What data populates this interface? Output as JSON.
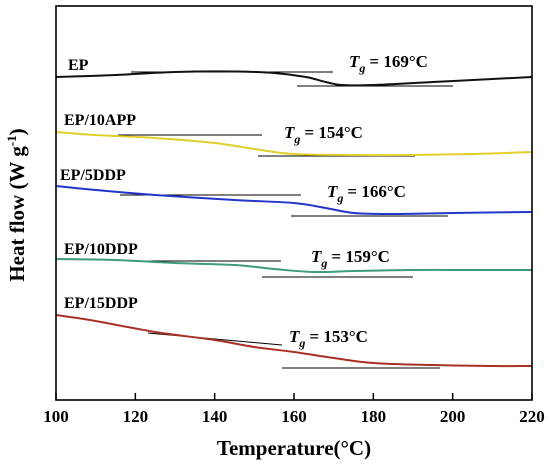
{
  "chart_data": {
    "type": "line",
    "xlabel": "Temperature(°C)",
    "ylabel_main": "Heat flow (W g",
    "ylabel_sup": "-1",
    "ylabel_end": ")",
    "xlim": [
      100,
      220
    ],
    "x_ticks": [
      "100",
      "120",
      "140",
      "160",
      "180",
      "200",
      "220"
    ],
    "y_ticks_shown": false,
    "grid": false,
    "series": [
      {
        "name": "EP",
        "color": "#111111",
        "tg_text": "= 169°C",
        "points": [
          [
            100,
            77
          ],
          [
            115,
            75
          ],
          [
            130,
            72
          ],
          [
            145,
            71.5
          ],
          [
            155,
            73
          ],
          [
            163,
            77
          ],
          [
            168,
            82
          ],
          [
            172,
            85
          ],
          [
            180,
            85
          ],
          [
            195,
            82
          ],
          [
            210,
            79
          ],
          [
            220,
            77
          ]
        ]
      },
      {
        "name": "EP/10APP",
        "color": "#e2cf2c",
        "tg_text": "= 154°C",
        "points": [
          [
            100,
            132
          ],
          [
            110,
            135
          ],
          [
            125,
            138
          ],
          [
            140,
            143
          ],
          [
            150,
            149
          ],
          [
            160,
            154
          ],
          [
            175,
            155
          ],
          [
            190,
            155
          ],
          [
            205,
            154
          ],
          [
            220,
            152
          ]
        ]
      },
      {
        "name": "EP/5DDP",
        "color": "#2236c9",
        "tg_text": "= 166°C",
        "points": [
          [
            100,
            186
          ],
          [
            110,
            190
          ],
          [
            125,
            195
          ],
          [
            145,
            200
          ],
          [
            160,
            203
          ],
          [
            168,
            208
          ],
          [
            175,
            213
          ],
          [
            185,
            214
          ],
          [
            200,
            213
          ],
          [
            220,
            212
          ]
        ]
      },
      {
        "name": "EP/10DDP",
        "color": "#3e9b7c",
        "tg_text": "= 159°C",
        "points": [
          [
            100,
            259
          ],
          [
            115,
            260
          ],
          [
            130,
            263
          ],
          [
            145,
            265
          ],
          [
            155,
            269
          ],
          [
            165,
            272
          ],
          [
            175,
            271
          ],
          [
            190,
            270
          ],
          [
            205,
            270
          ],
          [
            220,
            270
          ]
        ]
      },
      {
        "name": "EP/15DDP",
        "color": "#a83024",
        "tg_text": "= 153°C",
        "points": [
          [
            100,
            315
          ],
          [
            110,
            321
          ],
          [
            125,
            332
          ],
          [
            140,
            340
          ],
          [
            150,
            347
          ],
          [
            160,
            352
          ],
          [
            170,
            358
          ],
          [
            180,
            363
          ],
          [
            195,
            365
          ],
          [
            210,
            366
          ],
          [
            220,
            366
          ]
        ]
      }
    ]
  }
}
